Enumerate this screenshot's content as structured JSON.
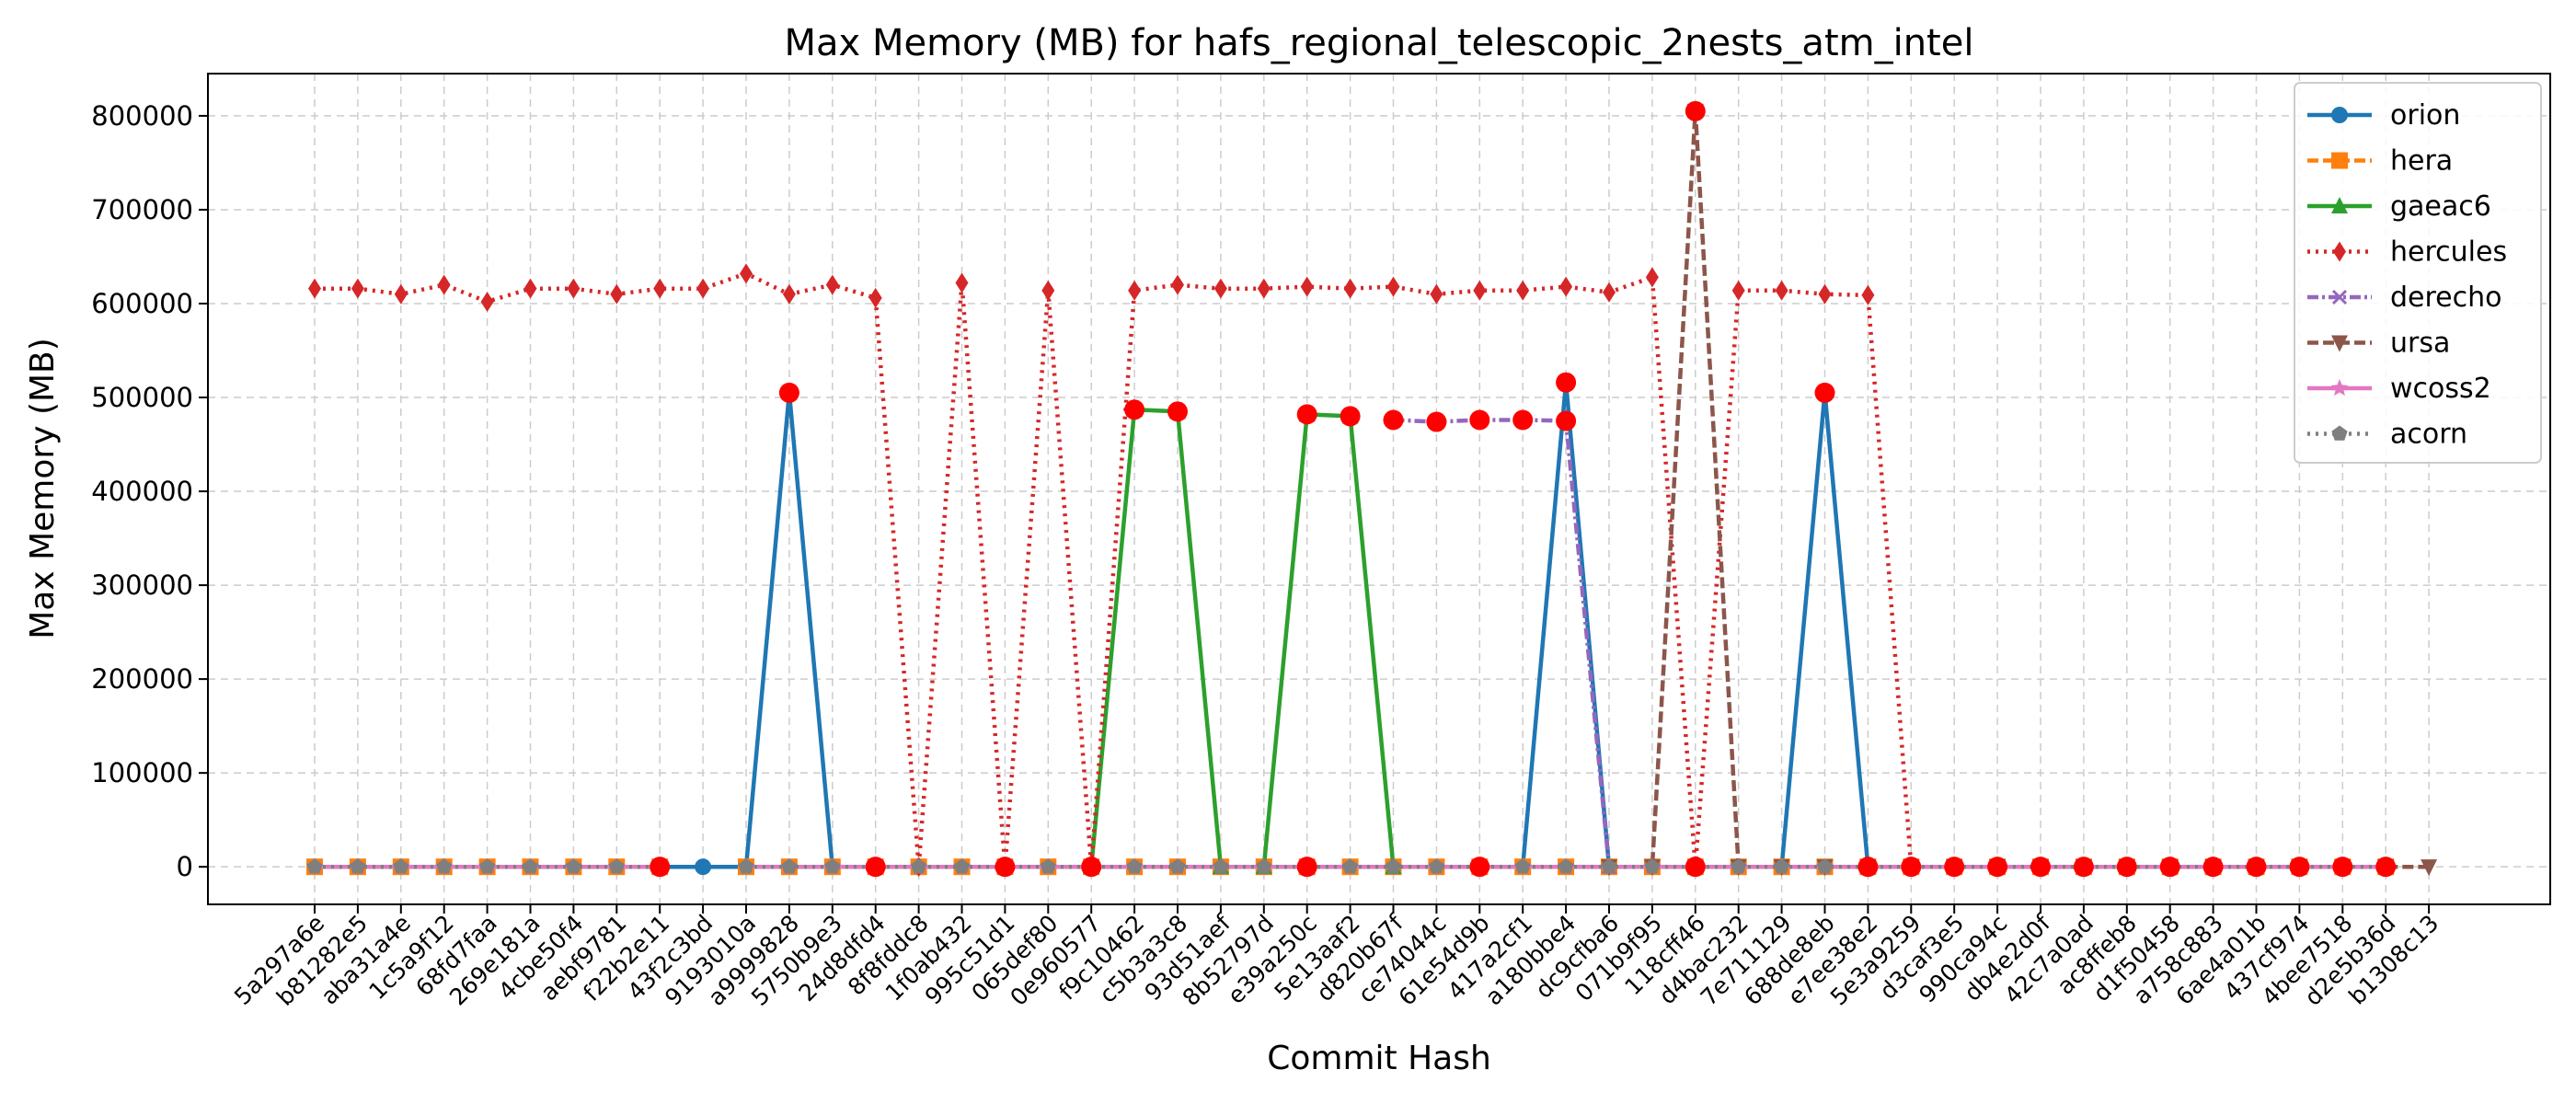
{
  "chart_data": {
    "type": "line",
    "title": "Max Memory (MB) for hafs_regional_telescopic_2nests_atm_intel",
    "xlabel": "Commit Hash",
    "ylabel": "Max Memory (MB)",
    "ylim": [
      -40000,
      845000
    ],
    "yticks": [
      0,
      100000,
      200000,
      300000,
      400000,
      500000,
      600000,
      700000,
      800000
    ],
    "yticklabels": [
      "0",
      "100000",
      "200000",
      "300000",
      "400000",
      "500000",
      "600000",
      "700000",
      "800000"
    ],
    "grid": true,
    "legend_position": "top-right",
    "categories": [
      "5a297a6e",
      "b81282e5",
      "aba31a4e",
      "1c5a9f12",
      "68fd7faa",
      "269e181a",
      "4cbe50f4",
      "aebf9781",
      "f22b2e11",
      "43f2c3bd",
      "9193010a",
      "a9999828",
      "5750b9e3",
      "24d8dfd4",
      "8f8fddc8",
      "1f0ab432",
      "995c51d1",
      "065def80",
      "0e960577",
      "f9c10462",
      "c5b3a3c8",
      "93d51aef",
      "8b52797d",
      "e39a250c",
      "5e13aaf2",
      "d820b67f",
      "ce74044c",
      "61e54d9b",
      "417a2cf1",
      "a180bbe4",
      "dc9cfba6",
      "071b9f95",
      "118cff46",
      "d4bac232",
      "7e711129",
      "688de8eb",
      "e7ee38e2",
      "5e3a9259",
      "d3caf3e5",
      "990ca94c",
      "db4e2d0f",
      "42c7a0ad",
      "ac8ffeb8",
      "d1f50458",
      "a758c883",
      "6ae4a01b",
      "437cf974",
      "4bee7518",
      "d2e5b36d",
      "b1308c13"
    ],
    "series": [
      {
        "name": "orion",
        "color": "#1f77b4",
        "dash": "",
        "marker": "circle",
        "values": [
          0,
          0,
          0,
          0,
          null,
          null,
          null,
          null,
          0,
          0,
          0,
          505000,
          0,
          null,
          null,
          null,
          null,
          null,
          null,
          null,
          null,
          null,
          null,
          null,
          null,
          null,
          null,
          null,
          0,
          516000,
          0,
          null,
          null,
          null,
          0,
          505000,
          0,
          null,
          null,
          null,
          null,
          null,
          null,
          null,
          null,
          null,
          null,
          null,
          null,
          null
        ]
      },
      {
        "name": "hera",
        "color": "#ff7f0e",
        "dash": "12,5",
        "marker": "square",
        "values": [
          0,
          0,
          0,
          0,
          0,
          0,
          0,
          0,
          0,
          null,
          0,
          0,
          0,
          0,
          0,
          0,
          0,
          0,
          0,
          0,
          0,
          0,
          0,
          0,
          0,
          0,
          0,
          0,
          0,
          0,
          0,
          0,
          0,
          0,
          0,
          0,
          0,
          0,
          0,
          0,
          0,
          0,
          0,
          0,
          0,
          0,
          0,
          0,
          0,
          null
        ]
      },
      {
        "name": "gaeac6",
        "color": "#2ca02c",
        "dash": "",
        "marker": "triangle",
        "values": [
          null,
          null,
          null,
          null,
          null,
          null,
          null,
          null,
          null,
          null,
          null,
          null,
          null,
          null,
          null,
          null,
          null,
          null,
          0,
          487000,
          485000,
          0,
          0,
          482000,
          480000,
          0,
          null,
          null,
          null,
          null,
          null,
          null,
          null,
          null,
          null,
          null,
          null,
          null,
          null,
          null,
          null,
          null,
          null,
          null,
          null,
          null,
          null,
          null,
          null,
          null
        ]
      },
      {
        "name": "hercules",
        "color": "#d62728",
        "dash": "3,6",
        "marker": "diamond",
        "values": [
          616000,
          616000,
          610000,
          620000,
          602000,
          616000,
          616000,
          610000,
          616000,
          616000,
          632000,
          610000,
          620000,
          606000,
          0,
          622000,
          0,
          614000,
          0,
          614000,
          620000,
          616000,
          616000,
          618000,
          616000,
          618000,
          610000,
          614000,
          614000,
          618000,
          612000,
          628000,
          0,
          614000,
          614000,
          610000,
          609000,
          0,
          null,
          null,
          null,
          null,
          null,
          null,
          null,
          null,
          null,
          null,
          null,
          null
        ]
      },
      {
        "name": "derecho",
        "color": "#9467bd",
        "dash": "12,4,3,4",
        "marker": "x",
        "values": [
          null,
          null,
          null,
          null,
          null,
          null,
          null,
          null,
          null,
          null,
          null,
          null,
          null,
          null,
          null,
          null,
          null,
          null,
          null,
          null,
          null,
          null,
          null,
          null,
          null,
          476000,
          474000,
          476000,
          476000,
          475000,
          0,
          null,
          null,
          null,
          null,
          null,
          null,
          null,
          null,
          null,
          null,
          null,
          null,
          null,
          null,
          null,
          null,
          null,
          null,
          null
        ]
      },
      {
        "name": "ursa",
        "color": "#8c564b",
        "dash": "12,5",
        "marker": "triangle-down",
        "values": [
          null,
          null,
          null,
          null,
          null,
          null,
          null,
          null,
          null,
          null,
          null,
          null,
          null,
          null,
          null,
          null,
          null,
          null,
          null,
          null,
          null,
          null,
          null,
          null,
          null,
          null,
          null,
          null,
          null,
          null,
          0,
          0,
          805000,
          0,
          0,
          0,
          0,
          0,
          0,
          0,
          0,
          0,
          0,
          0,
          0,
          0,
          0,
          0,
          0,
          0
        ]
      },
      {
        "name": "wcoss2",
        "color": "#e377c2",
        "dash": "",
        "marker": "star",
        "values": [
          0,
          0,
          0,
          0,
          0,
          0,
          0,
          0,
          0,
          null,
          0,
          0,
          0,
          0,
          0,
          0,
          0,
          0,
          0,
          0,
          0,
          0,
          0,
          0,
          0,
          0,
          0,
          0,
          0,
          0,
          0,
          0,
          0,
          0,
          0,
          0,
          0,
          0,
          0,
          0,
          0,
          0,
          0,
          0,
          0,
          0,
          0,
          0,
          0,
          null
        ]
      },
      {
        "name": "acorn",
        "color": "#7f7f7f",
        "dash": "3,6",
        "marker": "pentagon",
        "values": [
          0,
          0,
          0,
          0,
          0,
          0,
          0,
          0,
          0,
          null,
          0,
          0,
          0,
          0,
          0,
          0,
          0,
          0,
          0,
          0,
          0,
          0,
          0,
          0,
          0,
          0,
          0,
          0,
          0,
          0,
          0,
          0,
          0,
          0,
          0,
          0,
          0,
          0,
          0,
          0,
          0,
          0,
          0,
          0,
          0,
          0,
          0,
          0,
          0,
          null
        ]
      }
    ],
    "highlight_points": {
      "color": "#ff0000",
      "points": [
        [
          8,
          0
        ],
        [
          11,
          505000
        ],
        [
          13,
          0
        ],
        [
          16,
          0
        ],
        [
          18,
          0
        ],
        [
          19,
          487000
        ],
        [
          20,
          485000
        ],
        [
          23,
          482000
        ],
        [
          23,
          0
        ],
        [
          24,
          480000
        ],
        [
          25,
          476000
        ],
        [
          26,
          474000
        ],
        [
          27,
          476000
        ],
        [
          27,
          0
        ],
        [
          28,
          476000
        ],
        [
          29,
          516000
        ],
        [
          29,
          475000
        ],
        [
          32,
          805000
        ],
        [
          32,
          0
        ],
        [
          35,
          505000
        ],
        [
          36,
          0
        ],
        [
          37,
          0
        ],
        [
          38,
          0
        ],
        [
          39,
          0
        ],
        [
          40,
          0
        ],
        [
          41,
          0
        ],
        [
          42,
          0
        ],
        [
          43,
          0
        ],
        [
          44,
          0
        ],
        [
          45,
          0
        ],
        [
          46,
          0
        ],
        [
          47,
          0
        ],
        [
          48,
          0
        ]
      ]
    }
  }
}
